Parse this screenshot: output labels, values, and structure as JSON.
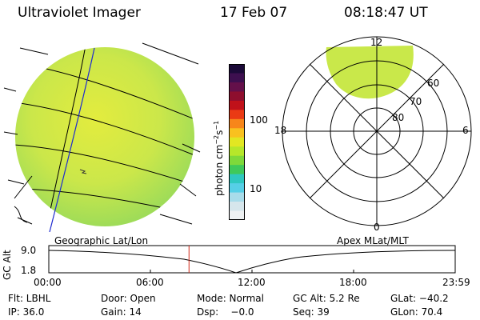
{
  "header": {
    "instrument": "Ultraviolet Imager",
    "date": "17 Feb 07",
    "time": "08:18:47 UT"
  },
  "geo_panel": {
    "label": "Geographic Lat/Lon"
  },
  "polar_panel": {
    "label": "Apex MLat/MLT",
    "mlt_labels": {
      "top": "12",
      "bottom": "0",
      "left": "18",
      "right": "6"
    },
    "lat_labels": [
      "60",
      "70",
      "80"
    ]
  },
  "colorbar": {
    "unit_label": "photon cm",
    "unit_exp1": "−2",
    "unit_s": "s",
    "unit_exp2": "−1",
    "tick_100": "100",
    "tick_10": "10",
    "colors": [
      "#1b0a38",
      "#3d0f4f",
      "#64104a",
      "#8e0e2e",
      "#c0111a",
      "#ea3a14",
      "#f7861a",
      "#f9c11f",
      "#e2e722",
      "#b6e72a",
      "#7fd93a",
      "#3fc95a",
      "#2fc8c0",
      "#56cfe6",
      "#a8dcea",
      "#d6e6ec",
      "#eef1f2"
    ]
  },
  "timeline": {
    "axis_label": "GC Alt",
    "y_ticks": [
      "9.0",
      "1.8"
    ],
    "x_ticks": [
      "00:00",
      "06:00",
      "12:00",
      "18:00",
      "23:59"
    ],
    "current_fraction": 0.345
  },
  "info": {
    "flt": "Flt: LBHL",
    "door": "Door: Open",
    "mode": "Mode: Normal",
    "gc_alt": "GC Alt: 5.2 Re",
    "glat": "GLat: −40.2",
    "ip": "IP: 36.0",
    "gain": "Gain: 14",
    "dsp": "Dsp:    −0.0",
    "seq": "Seq: 39",
    "glon": "GLon: 70.4"
  },
  "colors": {
    "image_fill": "#c9e84a",
    "grid_line": "#000000",
    "meridian": "#1f2bd0",
    "marker_line": "#d22a1a"
  }
}
